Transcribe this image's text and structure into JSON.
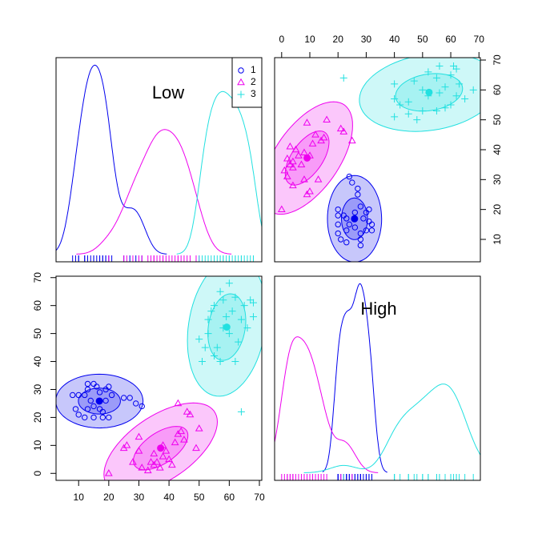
{
  "chart_data": {
    "type": "scatterplot-matrix",
    "variables": [
      "Low",
      "High"
    ],
    "limits": [
      [
        2.5,
        70.8
      ],
      [
        -2.5,
        70.5
      ]
    ],
    "ticks": [
      [
        10,
        20,
        30,
        40,
        50,
        60,
        70
      ],
      [
        0,
        10,
        20,
        30,
        40,
        50,
        60,
        70
      ]
    ],
    "ellipse_levels": [
      0.5,
      0.95
    ],
    "series": [
      {
        "name": "1",
        "color": "#0000ee",
        "marker": "circle",
        "data": [
          [
            8,
            10,
            12,
            9,
            10,
            12,
            13,
            14,
            15,
            17,
            18,
            19,
            20,
            21,
            13,
            15,
            17,
            19,
            20,
            13,
            16,
            25,
            27,
            29,
            31,
            15,
            18
          ],
          [
            28,
            28,
            28,
            23,
            21,
            20,
            23,
            26,
            24,
            23,
            22,
            26,
            20,
            28,
            30,
            32,
            29,
            30,
            31,
            32,
            31,
            27,
            27,
            25,
            24,
            20,
            20
          ]
        ]
      },
      {
        "name": "2",
        "color": "#ee00ee",
        "marker": "triangle",
        "data": [
          [
            20,
            25,
            26,
            28,
            30,
            31,
            33,
            34,
            35,
            36,
            37,
            38,
            38,
            40,
            41,
            42,
            43,
            43,
            44,
            45,
            46,
            47,
            49,
            50,
            35,
            39,
            30
          ],
          [
            0,
            9,
            10,
            4,
            13,
            2,
            1,
            4,
            7,
            4,
            2,
            6,
            10,
            5,
            3,
            11,
            25,
            14,
            15,
            12,
            22,
            21,
            9,
            16,
            3,
            8,
            8
          ]
        ]
      },
      {
        "name": "3",
        "color": "#22e0e0",
        "marker": "plus",
        "data": [
          [
            50,
            51,
            52,
            53,
            53,
            54,
            55,
            55,
            56,
            57,
            58,
            58,
            59,
            60,
            60,
            61,
            62,
            62,
            63,
            64,
            64,
            65,
            66,
            67,
            68,
            68,
            57
          ],
          [
            48,
            40,
            45,
            50,
            55,
            58,
            60,
            42,
            45,
            40,
            52,
            62,
            56,
            50,
            68,
            58,
            63,
            40,
            47,
            55,
            22,
            60,
            52,
            62,
            61,
            56,
            65
          ]
        ]
      }
    ]
  }
}
